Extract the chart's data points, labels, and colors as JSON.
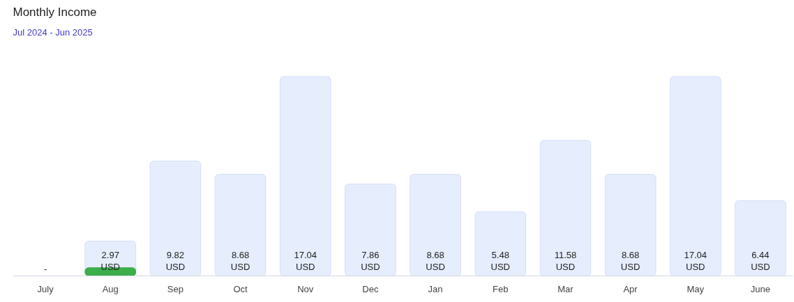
{
  "chart_data": {
    "type": "bar",
    "title": "Monthly Income",
    "subtitle": "Jul 2024 - Jun 2025",
    "categories": [
      "July",
      "Aug",
      "Sep",
      "Oct",
      "Nov",
      "Dec",
      "Jan",
      "Feb",
      "Mar",
      "Apr",
      "May",
      "June"
    ],
    "series": [
      {
        "color": "#e6edfd",
        "values": [
          null,
          2.97,
          9.82,
          8.68,
          17.04,
          7.86,
          8.68,
          5.48,
          11.58,
          8.68,
          17.04,
          6.44
        ],
        "value_labels": [
          "-",
          "2.97\nUSD",
          "9.82\nUSD",
          "8.68\nUSD",
          "17.04\nUSD",
          "7.86\nUSD",
          "8.68\nUSD",
          "5.48\nUSD",
          "11.58\nUSD",
          "8.68\nUSD",
          "17.04\nUSD",
          "6.44\nUSD"
        ]
      },
      {
        "color": "#3cae4a",
        "values": [
          null,
          0.7,
          null,
          null,
          null,
          null,
          null,
          null,
          null,
          null,
          null,
          null
        ]
      }
    ],
    "grid": false
  }
}
